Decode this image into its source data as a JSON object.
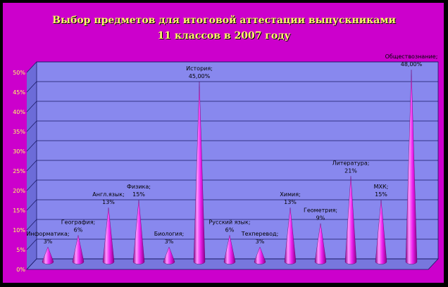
{
  "chart_data": {
    "type": "bar",
    "title": "Выбор предметов для итоговой аттестации выпускниками 11 классов в 2007 году",
    "title_lines": [
      "Выбор предметов для итоговой аттестации выпускниками",
      "11 классов в 2007 году"
    ],
    "xlabel": "",
    "ylabel": "",
    "ylim": [
      0,
      50
    ],
    "y_ticks": [
      "0%",
      "5%",
      "10%",
      "15%",
      "20%",
      "25%",
      "30%",
      "35%",
      "40%",
      "45%",
      "50%"
    ],
    "grid": true,
    "legend": "none",
    "mark_shape": "cone",
    "categories": [
      "Информатика",
      "География",
      "Англ.язык",
      "Физика",
      "Биология",
      "История",
      "Русский язык",
      "Техперевод",
      "Химия",
      "Геометрия",
      "Литература",
      "МХК",
      "Обществознание"
    ],
    "values": [
      3,
      6,
      13,
      15,
      3,
      45,
      6,
      3,
      13,
      9,
      21,
      15,
      48
    ],
    "data_labels": [
      "Информатика; 3%",
      "География; 6%",
      "Англ.язык; 13%",
      "Физика; 15%",
      "Биология; 3%",
      "История; 45,00%",
      "Русский язык; 6%",
      "Техперевод; 3%",
      "Химия; 13%",
      "Геометрия; 9%",
      "Литература; 21%",
      "МХК; 15%",
      "Обществознание; 48,00%"
    ],
    "colors": {
      "frame": "#cc00cc",
      "page": "#000000",
      "plot_wall": "#8888ee",
      "plot_floor": "#7777dd",
      "grid": "#1a1a66",
      "cone_light": "#ff99ff",
      "cone_mid": "#ee22ee",
      "cone_dark": "#880088",
      "title": "#ffff66",
      "axis_text": "#ffff66",
      "label_text": "#000000"
    }
  }
}
